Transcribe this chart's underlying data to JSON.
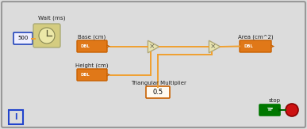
{
  "bg_color": "#dcdcdc",
  "border_color": "#999999",
  "fig_width": 3.87,
  "fig_height": 1.63,
  "dpi": 100,
  "wait_label": "Wait (ms)",
  "wait_value": "500",
  "base_label": "Base (cm)",
  "height_label": "Height (cm)",
  "tri_label": "Triangular Multiplier",
  "tri_value": "0.5",
  "area_label": "Area (cm^2)",
  "stop_label": "stop",
  "wire_color": "#f0a030",
  "orange_fill": "#e07818",
  "orange_border": "#c86000",
  "dbl_color": "#e07818",
  "node_fill": "#e8e4b0",
  "node_border": "#b0a878"
}
